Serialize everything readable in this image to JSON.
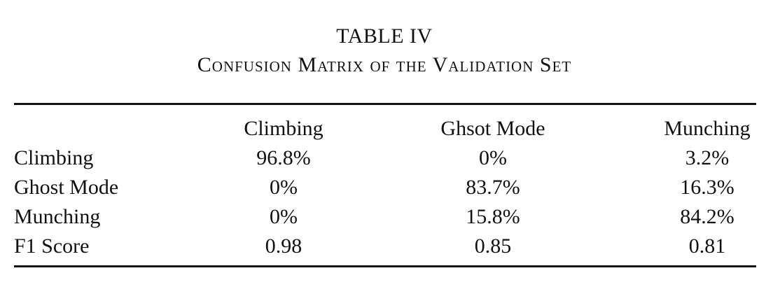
{
  "caption": {
    "label": "TABLE IV",
    "title": "Confusion Matrix of the Validation Set"
  },
  "table": {
    "columns": [
      "Climbing",
      "Ghsot Mode",
      "Munching"
    ],
    "rows": [
      {
        "label": "Climbing",
        "cells": [
          "96.8%",
          "0%",
          "3.2%"
        ]
      },
      {
        "label": "Ghost Mode",
        "cells": [
          "0%",
          "83.7%",
          "16.3%"
        ]
      },
      {
        "label": "Munching",
        "cells": [
          "0%",
          "15.8%",
          "84.2%"
        ]
      },
      {
        "label": "F1 Score",
        "cells": [
          "0.98",
          "0.85",
          "0.81"
        ]
      }
    ]
  }
}
